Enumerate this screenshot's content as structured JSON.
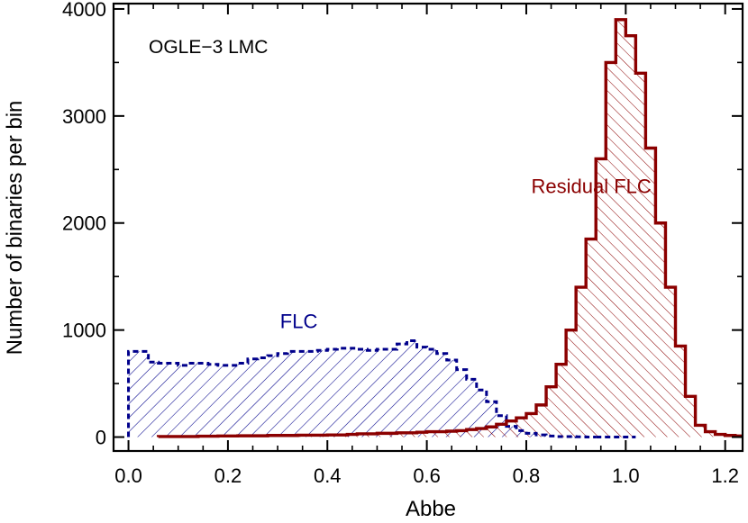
{
  "chart_data": {
    "type": "histogram",
    "annotation": "OGLE−3 LMC",
    "xlabel": "Abbe",
    "ylabel": "Number of binaries per bin",
    "xlim": [
      -0.03,
      1.235
    ],
    "ylim": [
      -130,
      4050
    ],
    "xticks": [
      0.0,
      0.2,
      0.4,
      0.6,
      0.8,
      1.0,
      1.2
    ],
    "xtick_labels": [
      "0.0",
      "0.2",
      "0.4",
      "0.6",
      "0.8",
      "1.0",
      "1.2"
    ],
    "yticks": [
      0,
      1000,
      2000,
      3000,
      4000
    ],
    "ytick_labels": [
      "0",
      "1000",
      "2000",
      "3000",
      "4000"
    ],
    "x_minor_step": 0.05,
    "y_minor_step": 500,
    "bin_width": 0.02,
    "series": [
      {
        "name": "FLC",
        "label": "FLC",
        "color": "#00008b",
        "line_style": "dashed",
        "hatch": "forward",
        "start": 0.0,
        "baseline_end": 1.02,
        "label_pos": [
          0.305,
          1020
        ],
        "values": [
          800,
          800,
          700,
          690,
          690,
          670,
          690,
          690,
          680,
          670,
          670,
          690,
          730,
          740,
          760,
          780,
          800,
          800,
          800,
          810,
          820,
          830,
          830,
          820,
          810,
          820,
          820,
          870,
          900,
          840,
          820,
          780,
          720,
          630,
          540,
          440,
          330,
          200,
          100,
          60,
          35,
          20,
          10,
          5,
          5,
          3,
          0
        ]
      },
      {
        "name": "Residual FLC",
        "label": "Residual FLC",
        "color": "#8b0000",
        "line_style": "solid",
        "hatch": "backward",
        "start": 0.06,
        "label_pos": [
          0.81,
          2280
        ],
        "values": [
          5,
          5,
          5,
          5,
          8,
          8,
          10,
          10,
          12,
          12,
          12,
          15,
          15,
          15,
          18,
          18,
          18,
          20,
          20,
          25,
          30,
          30,
          35,
          35,
          40,
          40,
          45,
          50,
          50,
          55,
          60,
          70,
          80,
          95,
          120,
          150,
          180,
          220,
          300,
          470,
          680,
          1000,
          1400,
          1850,
          2600,
          3500,
          3900,
          3750,
          3400,
          2700,
          2000,
          1400,
          850,
          380,
          110,
          50,
          25,
          15,
          10,
          5,
          3,
          3,
          2,
          2,
          1,
          1,
          0
        ]
      }
    ]
  }
}
